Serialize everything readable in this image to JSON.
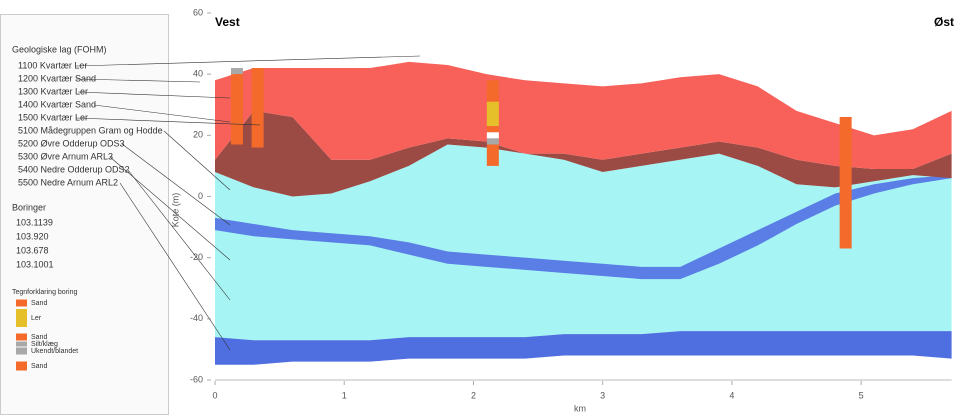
{
  "sidebar": {
    "layers_title": "Geologiske lag (FOHM)",
    "layers": [
      "1100 Kvartær Ler",
      "1200 Kvartær Sand",
      "1300 Kvartær Ler",
      "1400 Kvartær Sand",
      "1500 Kvartær Ler",
      "5100 Mådegruppen Gram og Hodde",
      "5200 Øvre Odderup ODS3",
      "5300 Øvre Arnum ARL3",
      "5400 Nedre Odderup ODS2",
      "5500 Nedre Arnum ARL2"
    ],
    "borings_title": "Boringer",
    "borings": [
      "103.1139",
      "103.920",
      "103.678",
      "103.1001"
    ],
    "key_title": "Tegnforklaring boring",
    "key": [
      {
        "label": "Sand",
        "color": "#f46a2a"
      },
      {
        "label": "Ler",
        "color": "#e6c02b"
      },
      {
        "label": "Sand",
        "color": "#f46a2a"
      },
      {
        "label": "Silt/klæg",
        "color": "#a8a8a8"
      },
      {
        "label": "Ukendt/blandet",
        "color": "#a8a8a8"
      },
      {
        "label": "Sand",
        "color": "#f46a2a"
      }
    ]
  },
  "chart_data": {
    "type": "cross-section",
    "left_label": "Vest",
    "right_label": "Øst",
    "xlabel": "km",
    "ylabel": "Kote (m)",
    "xlim": [
      0,
      5.7
    ],
    "ylim": [
      -60,
      60
    ],
    "xticks": [
      0,
      1,
      2,
      3,
      4,
      5
    ],
    "yticks": [
      -60,
      -40,
      -20,
      0,
      20,
      40,
      60
    ],
    "x": [
      0,
      0.3,
      0.6,
      0.9,
      1.2,
      1.5,
      1.8,
      2.1,
      2.4,
      2.7,
      3.0,
      3.3,
      3.6,
      3.9,
      4.2,
      4.5,
      4.8,
      5.1,
      5.4,
      5.7
    ],
    "layers": [
      {
        "color": "#a6f5f4",
        "top": [
          8,
          3,
          0,
          1,
          5,
          10,
          17,
          16,
          14,
          12,
          8,
          10,
          12,
          14,
          10,
          4,
          3,
          5,
          7,
          6
        ],
        "bottom": [
          -46,
          -47,
          -47,
          -47,
          -47,
          -46,
          -46,
          -46,
          -46,
          -45,
          -45,
          -45,
          -44,
          -44,
          -44,
          -44,
          -44,
          -44,
          -44,
          -44
        ]
      },
      {
        "color": "#5a7ee6",
        "top": [
          -7,
          -9,
          -11,
          -12,
          -13,
          -15,
          -18,
          -19,
          -20,
          -21,
          -22,
          -23,
          -23,
          -17,
          -11,
          -5,
          1,
          4,
          6,
          7
        ],
        "bottom": [
          -11,
          -13,
          -14,
          -15,
          -16,
          -19,
          -22,
          -23,
          -24,
          -25,
          -26,
          -27,
          -27,
          -22,
          -16,
          -9,
          -3,
          1,
          4,
          6
        ]
      },
      {
        "color": "#4f6fe0",
        "top": [
          -46,
          -47,
          -47,
          -47,
          -47,
          -46,
          -46,
          -46,
          -46,
          -45,
          -45,
          -45,
          -44,
          -44,
          -44,
          -44,
          -44,
          -44,
          -44,
          -44
        ],
        "bottom": [
          -55,
          -55,
          -54,
          -54,
          -54,
          -53,
          -53,
          -53,
          -53,
          -52,
          -52,
          -52,
          -52,
          -52,
          -52,
          -52,
          -52,
          -52,
          -52,
          -53
        ]
      },
      {
        "color": "#9c4a44",
        "top": [
          12,
          28,
          26,
          12,
          12,
          16,
          19,
          18,
          14,
          14,
          12,
          14,
          16,
          18,
          16,
          12,
          10,
          9,
          9,
          14
        ],
        "bottom": [
          8,
          3,
          0,
          1,
          5,
          10,
          17,
          16,
          14,
          12,
          8,
          10,
          12,
          14,
          10,
          4,
          3,
          5,
          7,
          6
        ]
      },
      {
        "color": "#f8615a",
        "top": [
          38,
          42,
          42,
          42,
          42,
          44,
          43,
          40,
          38,
          37,
          36,
          37,
          39,
          40,
          36,
          28,
          24,
          20,
          22,
          28
        ],
        "bottom": [
          12,
          28,
          26,
          12,
          12,
          16,
          19,
          18,
          14,
          14,
          12,
          14,
          16,
          18,
          16,
          12,
          10,
          9,
          9,
          14
        ]
      }
    ],
    "bores": [
      {
        "x": 0.17,
        "segments": [
          {
            "top": 42,
            "bottom": 40,
            "color": "#a8a8a8"
          },
          {
            "top": 40,
            "bottom": 17,
            "color": "#f46a2a"
          }
        ]
      },
      {
        "x": 0.33,
        "segments": [
          {
            "top": 42,
            "bottom": 16,
            "color": "#f46a2a"
          }
        ]
      },
      {
        "x": 2.15,
        "segments": [
          {
            "top": 38,
            "bottom": 31,
            "color": "#f46a2a"
          },
          {
            "top": 31,
            "bottom": 23,
            "color": "#e6c02b"
          },
          {
            "top": 23,
            "bottom": 21,
            "color": "#f46a2a"
          },
          {
            "top": 21,
            "bottom": 19,
            "color": "#ffffff"
          },
          {
            "top": 19,
            "bottom": 17,
            "color": "#a8a8a8"
          },
          {
            "top": 17,
            "bottom": 10,
            "color": "#f46a2a"
          }
        ]
      },
      {
        "x": 4.88,
        "segments": [
          {
            "top": 26,
            "bottom": -17,
            "color": "#f46a2a"
          }
        ]
      }
    ]
  }
}
